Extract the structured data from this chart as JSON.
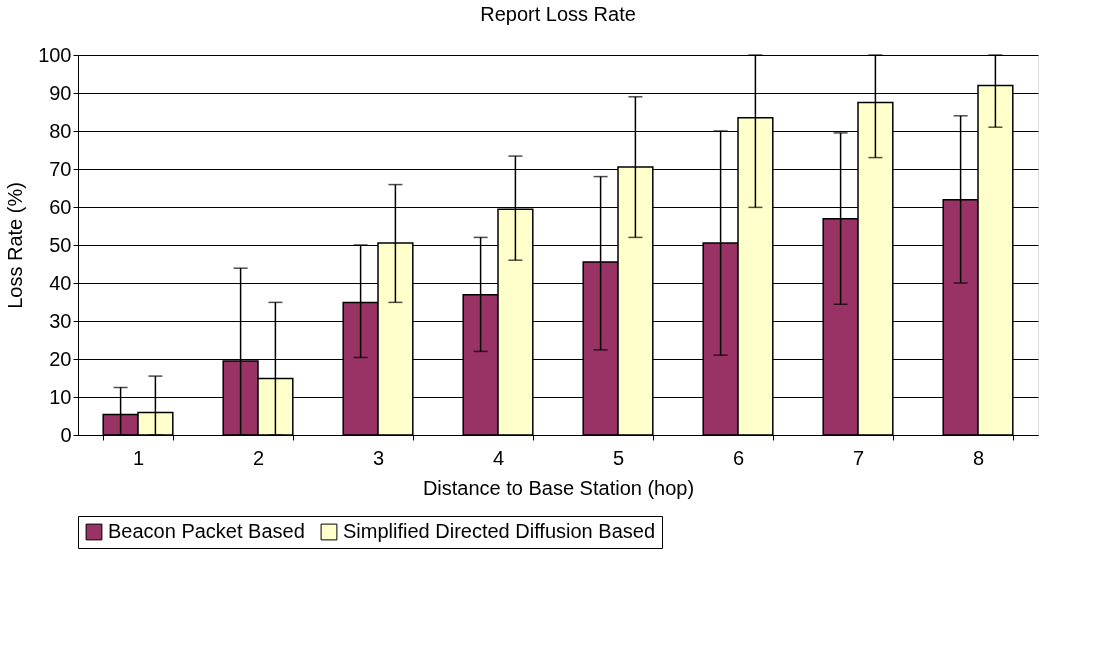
{
  "chart_data": {
    "type": "bar",
    "title": "Report Loss Rate",
    "xlabel": "Distance to Base Station (hop)",
    "ylabel": "Loss Rate (%)",
    "categories": [
      "1",
      "2",
      "3",
      "4",
      "5",
      "6",
      "7",
      "8"
    ],
    "series": [
      {
        "name": "Beacon Packet Based",
        "color": "#993366",
        "values": [
          5.4,
          19.5,
          34.9,
          36.9,
          45.5,
          50.5,
          56.9,
          61.9
        ],
        "errors": [
          [
            0,
            12.5
          ],
          [
            0,
            43.9
          ],
          [
            20.4,
            50
          ],
          [
            22,
            52
          ],
          [
            22.4,
            68
          ],
          [
            21,
            80
          ],
          [
            34.4,
            79.5
          ],
          [
            40,
            84
          ]
        ]
      },
      {
        "name": "Simplified Directed Diffusion Based",
        "color": "#ffffcc",
        "values": [
          5.9,
          14.9,
          50.5,
          59.4,
          70.5,
          83.5,
          87.5,
          92
        ],
        "errors": [
          [
            0,
            15.5
          ],
          [
            0,
            34.9
          ],
          [
            34.9,
            65.9
          ],
          [
            46,
            73.4
          ],
          [
            52,
            89
          ],
          [
            59.9,
            100
          ],
          [
            73,
            100
          ],
          [
            81,
            100
          ]
        ]
      }
    ],
    "ylim": [
      0,
      100
    ],
    "yticks": [
      0,
      10,
      20,
      30,
      40,
      50,
      60,
      70,
      80,
      90,
      100
    ],
    "grid": "y",
    "legend": "bottom"
  }
}
